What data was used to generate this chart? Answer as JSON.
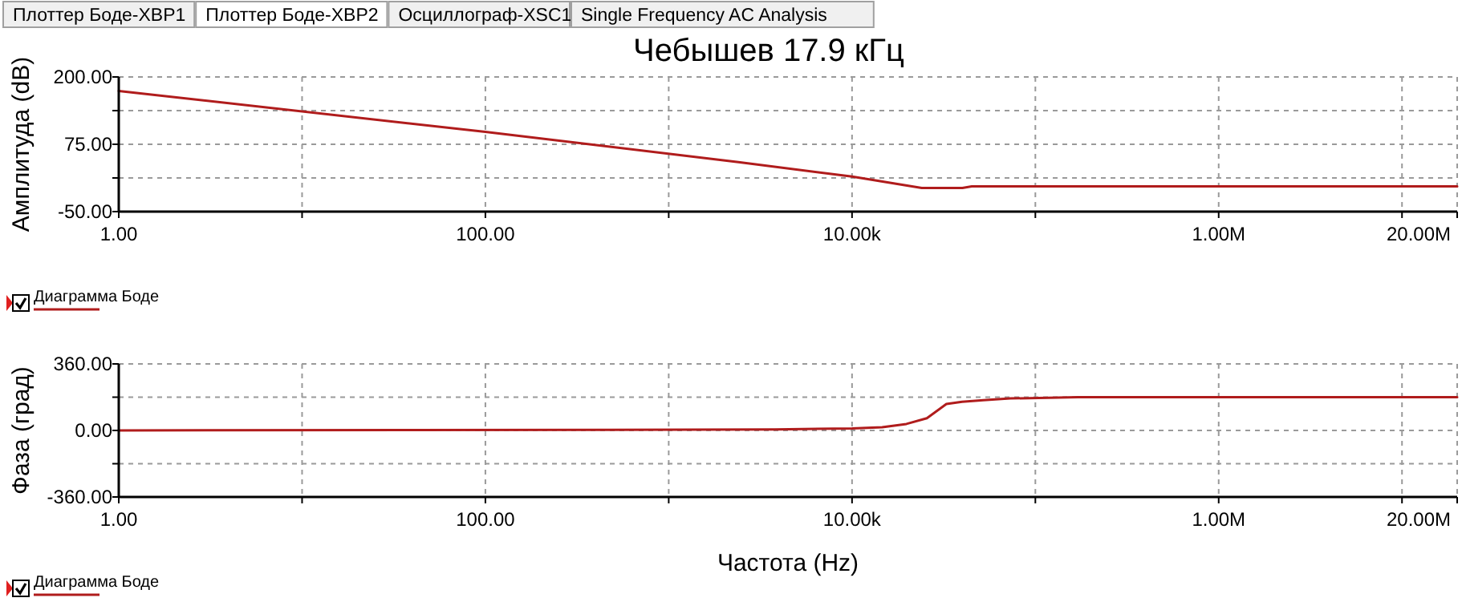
{
  "chart_data": [
    {
      "type": "line",
      "title": "Чебышев 17.9 кГц",
      "ylabel": "Амплитуда (dB)",
      "annotations": [
        "Плоттер Боде-XBP1",
        "Плоттер Боде-XBP2",
        "Осциллограф-XSC1",
        "Single Frequency AC Analysis"
      ],
      "log": "x",
      "grid": true,
      "legend": "bottom left",
      "xlim": [
        1,
        20000000
      ],
      "xticks": [
        {
          "value": 1,
          "label": "1.00"
        },
        {
          "value": 10,
          "label": null
        },
        {
          "value": 100,
          "label": "100.00"
        },
        {
          "value": 1000,
          "label": null
        },
        {
          "value": 10000,
          "label": "10.00k"
        },
        {
          "value": 100000,
          "label": null
        },
        {
          "value": 1000000,
          "label": "1.00M"
        },
        {
          "value": 10000000,
          "label": null
        },
        {
          "value": 20000000,
          "label": "20.00M"
        }
      ],
      "ylim": [
        -50,
        200
      ],
      "yticks": [
        {
          "value": -50,
          "label": "-50.00"
        },
        {
          "value": 12.5,
          "label": null
        },
        {
          "value": 75,
          "label": "75.00"
        },
        {
          "value": 137.5,
          "label": null
        },
        {
          "value": 200,
          "label": "200.00"
        }
      ],
      "series": [
        {
          "name": "Диаграмма Боде",
          "color": "#b01c1c",
          "x": [
            1,
            100,
            2400,
            10000,
            24000,
            40000,
            45000,
            20000000
          ],
          "values": [
            174,
            98,
            42,
            15,
            -6,
            -6,
            -3,
            -3
          ]
        }
      ]
    },
    {
      "type": "line",
      "xlabel": "Частота (Hz)",
      "ylabel": "Фаза (град)",
      "log": "x",
      "grid": true,
      "legend": "bottom left",
      "xlim": [
        1,
        20000000
      ],
      "xticks": [
        {
          "value": 1,
          "label": "1.00"
        },
        {
          "value": 10,
          "label": null
        },
        {
          "value": 100,
          "label": "100.00"
        },
        {
          "value": 1000,
          "label": null
        },
        {
          "value": 10000,
          "label": "10.00k"
        },
        {
          "value": 100000,
          "label": null
        },
        {
          "value": 1000000,
          "label": "1.00M"
        },
        {
          "value": 10000000,
          "label": null
        },
        {
          "value": 20000000,
          "label": "20.00M"
        }
      ],
      "ylim": [
        -360,
        360
      ],
      "yticks": [
        {
          "value": -360,
          "label": "-360.00"
        },
        {
          "value": -180,
          "label": null
        },
        {
          "value": 0,
          "label": "0.00"
        },
        {
          "value": 180,
          "label": null
        },
        {
          "value": 360,
          "label": "360.00"
        }
      ],
      "series": [
        {
          "name": "Диаграмма Боде",
          "color": "#b01c1c",
          "x": [
            1,
            3800,
            10000,
            14600,
            19800,
            25600,
            32700,
            39800,
            52000,
            73000,
            171000,
            20000000
          ],
          "values": [
            0,
            5,
            11,
            17,
            35,
            66,
            143,
            155,
            164,
            173,
            180,
            180
          ]
        }
      ]
    }
  ]
}
